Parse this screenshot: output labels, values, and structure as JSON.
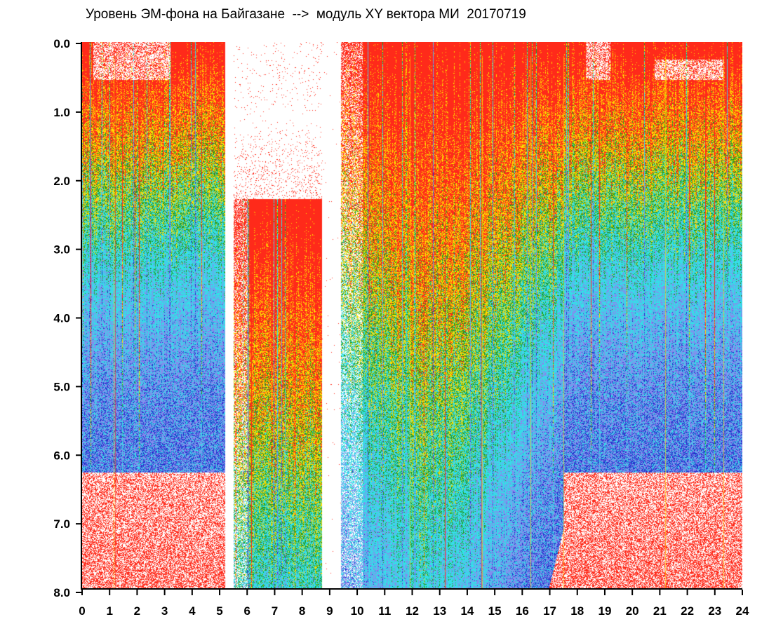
{
  "title": "Уровень ЭМ-фона на Байгазане  -->  модуль XY вектора МИ  20170719",
  "chart_data": {
    "type": "heatmap",
    "title": "Уровень ЭМ-фона на Байгазане  -->  модуль XY вектора МИ  20170719",
    "xlabel": "",
    "ylabel": "",
    "xlim": [
      0,
      24
    ],
    "ylim": [
      8.0,
      0.0
    ],
    "x_ticks": [
      "0",
      "1",
      "2",
      "3",
      "4",
      "5",
      "6",
      "7",
      "8",
      "9",
      "10",
      "11",
      "12",
      "13",
      "14",
      "15",
      "16",
      "17",
      "18",
      "19",
      "20",
      "21",
      "22",
      "23",
      "24"
    ],
    "y_ticks": [
      "0.0",
      "1.0",
      "2.0",
      "3.0",
      "4.0",
      "5.0",
      "6.0",
      "7.0",
      "8.0"
    ],
    "colors": [
      "#ff2a1a",
      "#ffdd00",
      "#229922",
      "#33e0e8",
      "#8888ee",
      "#2233cc"
    ],
    "grid": false,
    "legend": "none",
    "gaps_hours": [
      [
        5.2,
        5.5
      ],
      [
        8.7,
        9.4
      ]
    ],
    "sparse_hours": [
      [
        5.5,
        6.0
      ],
      [
        9.4,
        10.2
      ]
    ]
  }
}
